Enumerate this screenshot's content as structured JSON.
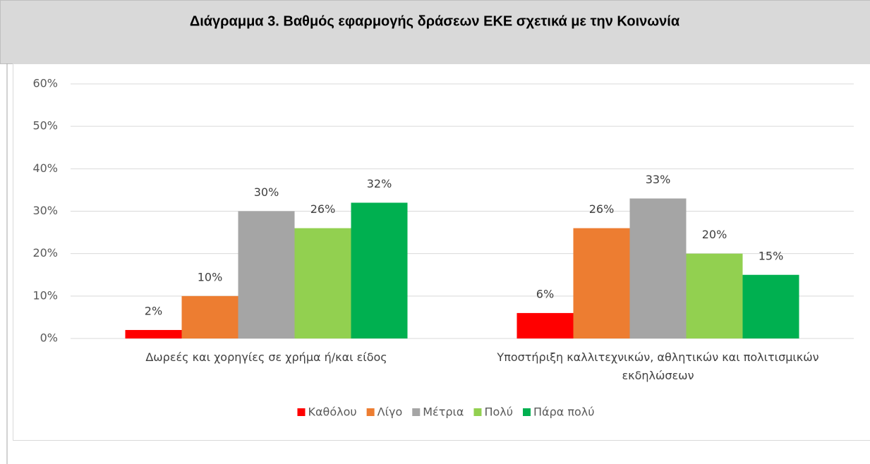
{
  "chart_data": {
    "type": "bar",
    "title": "Διάγραμμα 3. Βαθμός εφαρμογής δράσεων ΕΚΕ σχετικά με την Κοινωνία",
    "categories": [
      "Δωρεές και χορηγίες σε χρήμα ή/και είδος",
      "Υποστήριξη καλλιτεχνικών, αθλητικών και πολιτισμικών εκδηλώσεων"
    ],
    "series": [
      {
        "name": "Καθόλου",
        "color": "#ff0000",
        "values": [
          2,
          6
        ],
        "value_labels": [
          "2%",
          "6%"
        ]
      },
      {
        "name": "Λίγο",
        "color": "#ed7d31",
        "values": [
          10,
          26
        ],
        "value_labels": [
          "10%",
          "26%"
        ]
      },
      {
        "name": "Μέτρια",
        "color": "#a5a5a5",
        "values": [
          30,
          33
        ],
        "value_labels": [
          "30%",
          "33%"
        ]
      },
      {
        "name": "Πολύ",
        "color": "#92d050",
        "values": [
          26,
          20
        ],
        "value_labels": [
          "26%",
          "20%"
        ]
      },
      {
        "name": "Πάρα πολύ",
        "color": "#00b050",
        "values": [
          32,
          15
        ],
        "value_labels": [
          "32%",
          "15%"
        ]
      }
    ],
    "ylim": [
      0,
      60
    ],
    "yticks": [
      {
        "value": 0,
        "label": "0%"
      },
      {
        "value": 10,
        "label": "10%"
      },
      {
        "value": 20,
        "label": "20%"
      },
      {
        "value": 30,
        "label": "30%"
      },
      {
        "value": 40,
        "label": "40%"
      },
      {
        "value": 50,
        "label": "50%"
      },
      {
        "value": 60,
        "label": "60%"
      }
    ],
    "grid": true,
    "legend": "bottom"
  }
}
